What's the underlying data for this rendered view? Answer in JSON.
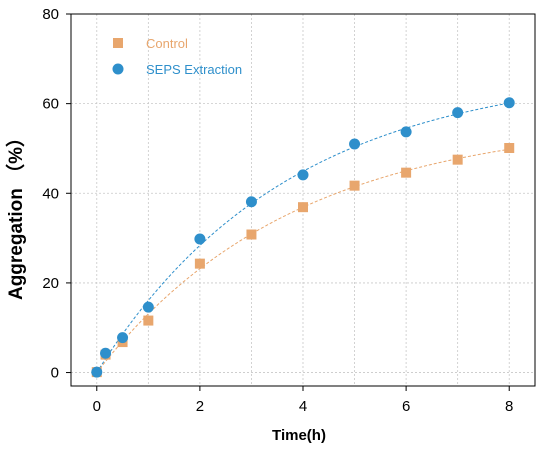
{
  "chart_data": {
    "type": "scatter",
    "xlabel": "Time(h)",
    "ylabel": "Aggregation （%）",
    "xlim": [
      -0.5,
      8.5
    ],
    "ylim": [
      -3,
      80
    ],
    "xticks": [
      0,
      2,
      4,
      6,
      8
    ],
    "yticks": [
      0,
      20,
      40,
      60,
      80
    ],
    "grid": true,
    "legend_position": "top-left",
    "series": [
      {
        "name": "Control",
        "marker": "square",
        "color": "#E8A66D",
        "fit_line": "dashed",
        "x": [
          0,
          0.17,
          0.5,
          1,
          2,
          3,
          4,
          5,
          6,
          7,
          8
        ],
        "y": [
          0.1,
          4.0,
          6.8,
          11.6,
          24.3,
          30.8,
          36.9,
          41.7,
          44.6,
          47.5,
          50.1
        ]
      },
      {
        "name": "SEPS Extraction",
        "marker": "circle",
        "color": "#2E8FCB",
        "fit_line": "dashed",
        "x": [
          0,
          0.17,
          0.5,
          1,
          2,
          3,
          4,
          5,
          6,
          7,
          8
        ],
        "y": [
          0.1,
          4.3,
          7.8,
          14.6,
          29.8,
          38.1,
          44.1,
          51.0,
          53.7,
          58.0,
          60.2
        ]
      }
    ]
  }
}
